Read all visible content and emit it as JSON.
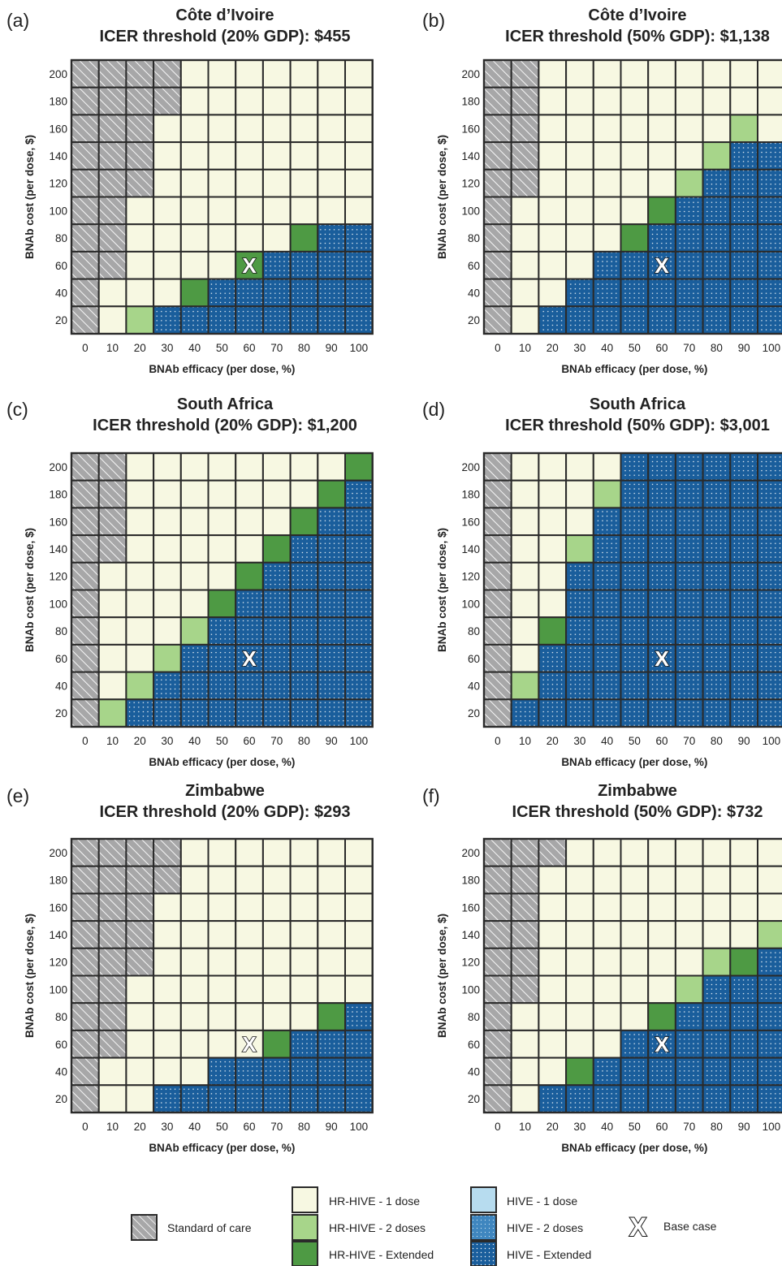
{
  "chart_data": [
    {
      "type": "heatmap",
      "panel": "(a)",
      "title": "Côte d’Ivoire",
      "subtitle": "ICER threshold (20% GDP): $455",
      "xlabel": "BNAb efficacy (per dose, %)",
      "ylabel": "BNAb cost (per dose, $)",
      "x": [
        "0",
        "10",
        "20",
        "30",
        "40",
        "50",
        "60",
        "70",
        "80",
        "90",
        "100"
      ],
      "y": [
        "200",
        "180",
        "160",
        "140",
        "120",
        "100",
        "80",
        "60",
        "40",
        "20"
      ],
      "grid": [
        [
          "S",
          "S",
          "S",
          "S",
          "L",
          "L",
          "L",
          "L",
          "L",
          "L",
          "L"
        ],
        [
          "S",
          "S",
          "S",
          "S",
          "L",
          "L",
          "L",
          "L",
          "L",
          "L",
          "L"
        ],
        [
          "S",
          "S",
          "S",
          "L",
          "L",
          "L",
          "L",
          "L",
          "L",
          "L",
          "L"
        ],
        [
          "S",
          "S",
          "S",
          "L",
          "L",
          "L",
          "L",
          "L",
          "L",
          "L",
          "L"
        ],
        [
          "S",
          "S",
          "S",
          "L",
          "L",
          "L",
          "L",
          "L",
          "L",
          "L",
          "L"
        ],
        [
          "S",
          "S",
          "L",
          "L",
          "L",
          "L",
          "L",
          "L",
          "L",
          "L",
          "L"
        ],
        [
          "S",
          "S",
          "L",
          "L",
          "L",
          "L",
          "L",
          "L",
          "E",
          "B",
          "B"
        ],
        [
          "S",
          "S",
          "L",
          "L",
          "L",
          "L",
          "E",
          "B",
          "B",
          "B",
          "B"
        ],
        [
          "S",
          "L",
          "L",
          "L",
          "E",
          "B",
          "B",
          "B",
          "B",
          "B",
          "B"
        ],
        [
          "S",
          "L",
          "M",
          "B",
          "B",
          "B",
          "B",
          "B",
          "B",
          "B",
          "B"
        ]
      ],
      "base_case": {
        "x": "60",
        "y": "60"
      }
    },
    {
      "type": "heatmap",
      "panel": "(b)",
      "title": "Côte d’Ivoire",
      "subtitle": "ICER threshold (50% GDP): $1,138",
      "xlabel": "BNAb efficacy (per dose, %)",
      "ylabel": "BNAb cost (per dose, $)",
      "x": [
        "0",
        "10",
        "20",
        "30",
        "40",
        "50",
        "60",
        "70",
        "80",
        "90",
        "100"
      ],
      "y": [
        "200",
        "180",
        "160",
        "140",
        "120",
        "100",
        "80",
        "60",
        "40",
        "20"
      ],
      "grid": [
        [
          "S",
          "S",
          "L",
          "L",
          "L",
          "L",
          "L",
          "L",
          "L",
          "L",
          "L"
        ],
        [
          "S",
          "S",
          "L",
          "L",
          "L",
          "L",
          "L",
          "L",
          "L",
          "L",
          "L"
        ],
        [
          "S",
          "S",
          "L",
          "L",
          "L",
          "L",
          "L",
          "L",
          "L",
          "M",
          "L"
        ],
        [
          "S",
          "S",
          "L",
          "L",
          "L",
          "L",
          "L",
          "L",
          "M",
          "B",
          "B"
        ],
        [
          "S",
          "S",
          "L",
          "L",
          "L",
          "L",
          "L",
          "M",
          "B",
          "B",
          "B"
        ],
        [
          "S",
          "L",
          "L",
          "L",
          "L",
          "L",
          "E",
          "B",
          "B",
          "B",
          "B"
        ],
        [
          "S",
          "L",
          "L",
          "L",
          "L",
          "E",
          "B",
          "B",
          "B",
          "B",
          "B"
        ],
        [
          "S",
          "L",
          "L",
          "L",
          "B",
          "B",
          "B",
          "B",
          "B",
          "B",
          "B"
        ],
        [
          "S",
          "L",
          "L",
          "B",
          "B",
          "B",
          "B",
          "B",
          "B",
          "B",
          "B"
        ],
        [
          "S",
          "L",
          "B",
          "B",
          "B",
          "B",
          "B",
          "B",
          "B",
          "B",
          "B"
        ]
      ],
      "base_case": {
        "x": "60",
        "y": "60"
      }
    },
    {
      "type": "heatmap",
      "panel": "(c)",
      "title": "South Africa",
      "subtitle": "ICER threshold (20% GDP): $1,200",
      "xlabel": "BNAb efficacy (per dose, %)",
      "ylabel": "BNAb cost (per dose, $)",
      "x": [
        "0",
        "10",
        "20",
        "30",
        "40",
        "50",
        "60",
        "70",
        "80",
        "90",
        "100"
      ],
      "y": [
        "200",
        "180",
        "160",
        "140",
        "120",
        "100",
        "80",
        "60",
        "40",
        "20"
      ],
      "grid": [
        [
          "S",
          "S",
          "L",
          "L",
          "L",
          "L",
          "L",
          "L",
          "L",
          "L",
          "E"
        ],
        [
          "S",
          "S",
          "L",
          "L",
          "L",
          "L",
          "L",
          "L",
          "L",
          "E",
          "B"
        ],
        [
          "S",
          "S",
          "L",
          "L",
          "L",
          "L",
          "L",
          "L",
          "E",
          "B",
          "B"
        ],
        [
          "S",
          "S",
          "L",
          "L",
          "L",
          "L",
          "L",
          "E",
          "B",
          "B",
          "B"
        ],
        [
          "S",
          "L",
          "L",
          "L",
          "L",
          "L",
          "E",
          "B",
          "B",
          "B",
          "B"
        ],
        [
          "S",
          "L",
          "L",
          "L",
          "L",
          "E",
          "B",
          "B",
          "B",
          "B",
          "B"
        ],
        [
          "S",
          "L",
          "L",
          "L",
          "M",
          "B",
          "B",
          "B",
          "B",
          "B",
          "B"
        ],
        [
          "S",
          "L",
          "L",
          "M",
          "B",
          "B",
          "B",
          "B",
          "B",
          "B",
          "B"
        ],
        [
          "S",
          "L",
          "M",
          "B",
          "B",
          "B",
          "B",
          "B",
          "B",
          "B",
          "B"
        ],
        [
          "S",
          "M",
          "B",
          "B",
          "B",
          "B",
          "B",
          "B",
          "B",
          "B",
          "B"
        ]
      ],
      "base_case": {
        "x": "60",
        "y": "60"
      }
    },
    {
      "type": "heatmap",
      "panel": "(d)",
      "title": "South Africa",
      "subtitle": "ICER threshold (50% GDP): $3,001",
      "xlabel": "BNAb efficacy (per dose, %)",
      "ylabel": "BNAb cost (per dose, $)",
      "x": [
        "0",
        "10",
        "20",
        "30",
        "40",
        "50",
        "60",
        "70",
        "80",
        "90",
        "100"
      ],
      "y": [
        "200",
        "180",
        "160",
        "140",
        "120",
        "100",
        "80",
        "60",
        "40",
        "20"
      ],
      "grid": [
        [
          "S",
          "L",
          "L",
          "L",
          "L",
          "B",
          "B",
          "B",
          "B",
          "B",
          "B"
        ],
        [
          "S",
          "L",
          "L",
          "L",
          "M",
          "B",
          "B",
          "B",
          "B",
          "B",
          "B"
        ],
        [
          "S",
          "L",
          "L",
          "L",
          "B",
          "B",
          "B",
          "B",
          "B",
          "B",
          "B"
        ],
        [
          "S",
          "L",
          "L",
          "M",
          "B",
          "B",
          "B",
          "B",
          "B",
          "B",
          "B"
        ],
        [
          "S",
          "L",
          "L",
          "B",
          "B",
          "B",
          "B",
          "B",
          "B",
          "B",
          "B"
        ],
        [
          "S",
          "L",
          "L",
          "B",
          "B",
          "B",
          "B",
          "B",
          "B",
          "B",
          "B"
        ],
        [
          "S",
          "L",
          "E",
          "B",
          "B",
          "B",
          "B",
          "B",
          "B",
          "B",
          "B"
        ],
        [
          "S",
          "L",
          "B",
          "B",
          "B",
          "B",
          "B",
          "B",
          "B",
          "B",
          "B"
        ],
        [
          "S",
          "M",
          "B",
          "B",
          "B",
          "B",
          "B",
          "B",
          "B",
          "B",
          "B"
        ],
        [
          "S",
          "B",
          "B",
          "B",
          "B",
          "B",
          "B",
          "B",
          "B",
          "B",
          "B"
        ]
      ],
      "base_case": {
        "x": "60",
        "y": "60"
      }
    },
    {
      "type": "heatmap",
      "panel": "(e)",
      "title": "Zimbabwe",
      "subtitle": "ICER threshold (20% GDP): $293",
      "xlabel": "BNAb efficacy (per dose, %)",
      "ylabel": "BNAb cost (per dose, $)",
      "x": [
        "0",
        "10",
        "20",
        "30",
        "40",
        "50",
        "60",
        "70",
        "80",
        "90",
        "100"
      ],
      "y": [
        "200",
        "180",
        "160",
        "140",
        "120",
        "100",
        "80",
        "60",
        "40",
        "20"
      ],
      "grid": [
        [
          "S",
          "S",
          "S",
          "S",
          "L",
          "L",
          "L",
          "L",
          "L",
          "L",
          "L"
        ],
        [
          "S",
          "S",
          "S",
          "S",
          "L",
          "L",
          "L",
          "L",
          "L",
          "L",
          "L"
        ],
        [
          "S",
          "S",
          "S",
          "L",
          "L",
          "L",
          "L",
          "L",
          "L",
          "L",
          "L"
        ],
        [
          "S",
          "S",
          "S",
          "L",
          "L",
          "L",
          "L",
          "L",
          "L",
          "L",
          "L"
        ],
        [
          "S",
          "S",
          "S",
          "L",
          "L",
          "L",
          "L",
          "L",
          "L",
          "L",
          "L"
        ],
        [
          "S",
          "S",
          "L",
          "L",
          "L",
          "L",
          "L",
          "L",
          "L",
          "L",
          "L"
        ],
        [
          "S",
          "S",
          "L",
          "L",
          "L",
          "L",
          "L",
          "L",
          "L",
          "E",
          "B"
        ],
        [
          "S",
          "S",
          "L",
          "L",
          "L",
          "L",
          "L",
          "E",
          "B",
          "B",
          "B"
        ],
        [
          "S",
          "L",
          "L",
          "L",
          "L",
          "B",
          "B",
          "B",
          "B",
          "B",
          "B"
        ],
        [
          "S",
          "L",
          "L",
          "B",
          "B",
          "B",
          "B",
          "B",
          "B",
          "B",
          "B"
        ]
      ],
      "base_case": {
        "x": "60",
        "y": "60"
      }
    },
    {
      "type": "heatmap",
      "panel": "(f)",
      "title": "Zimbabwe",
      "subtitle": "ICER threshold (50% GDP): $732",
      "xlabel": "BNAb efficacy (per dose, %)",
      "ylabel": "BNAb cost (per dose, $)",
      "x": [
        "0",
        "10",
        "20",
        "30",
        "40",
        "50",
        "60",
        "70",
        "80",
        "90",
        "100"
      ],
      "y": [
        "200",
        "180",
        "160",
        "140",
        "120",
        "100",
        "80",
        "60",
        "40",
        "20"
      ],
      "grid": [
        [
          "S",
          "S",
          "S",
          "L",
          "L",
          "L",
          "L",
          "L",
          "L",
          "L",
          "L"
        ],
        [
          "S",
          "S",
          "L",
          "L",
          "L",
          "L",
          "L",
          "L",
          "L",
          "L",
          "L"
        ],
        [
          "S",
          "S",
          "L",
          "L",
          "L",
          "L",
          "L",
          "L",
          "L",
          "L",
          "L"
        ],
        [
          "S",
          "S",
          "L",
          "L",
          "L",
          "L",
          "L",
          "L",
          "L",
          "L",
          "M"
        ],
        [
          "S",
          "S",
          "L",
          "L",
          "L",
          "L",
          "L",
          "L",
          "M",
          "E",
          "B"
        ],
        [
          "S",
          "S",
          "L",
          "L",
          "L",
          "L",
          "L",
          "M",
          "B",
          "B",
          "B"
        ],
        [
          "S",
          "L",
          "L",
          "L",
          "L",
          "L",
          "E",
          "B",
          "B",
          "B",
          "B"
        ],
        [
          "S",
          "L",
          "L",
          "L",
          "L",
          "B",
          "B",
          "B",
          "B",
          "B",
          "B"
        ],
        [
          "S",
          "L",
          "L",
          "E",
          "B",
          "B",
          "B",
          "B",
          "B",
          "B",
          "B"
        ],
        [
          "S",
          "L",
          "B",
          "B",
          "B",
          "B",
          "B",
          "B",
          "B",
          "B",
          "B"
        ]
      ],
      "base_case": {
        "x": "60",
        "y": "60"
      }
    }
  ],
  "categories": {
    "S": {
      "label": "Standard of care",
      "color": "#a7a7a8"
    },
    "L": {
      "label": "HR-HIVE - 1 dose",
      "color": "#f7f8e2"
    },
    "M": {
      "label": "HR-HIVE - 2 doses",
      "color": "#a7d58a"
    },
    "E": {
      "label": "HR-HIVE - Extended",
      "color": "#4e9a44"
    },
    "H1": {
      "label": "HIVE - 1 dose",
      "color": "#b7dcef"
    },
    "H2": {
      "label": "HIVE - 2 doses",
      "color": "#3f86bf"
    },
    "B": {
      "label": "HIVE - Extended",
      "color": "#1a5e9c"
    }
  },
  "base_case_marker": "X",
  "legend": {
    "standard": "Standard of care",
    "hr1": "HR-HIVE - 1 dose",
    "hr2": "HR-HIVE - 2 doses",
    "hre": "HR-HIVE - Extended",
    "hive1": "HIVE - 1 dose",
    "hive2": "HIVE - 2 doses",
    "hivee": "HIVE - Extended",
    "base": "Base case"
  }
}
